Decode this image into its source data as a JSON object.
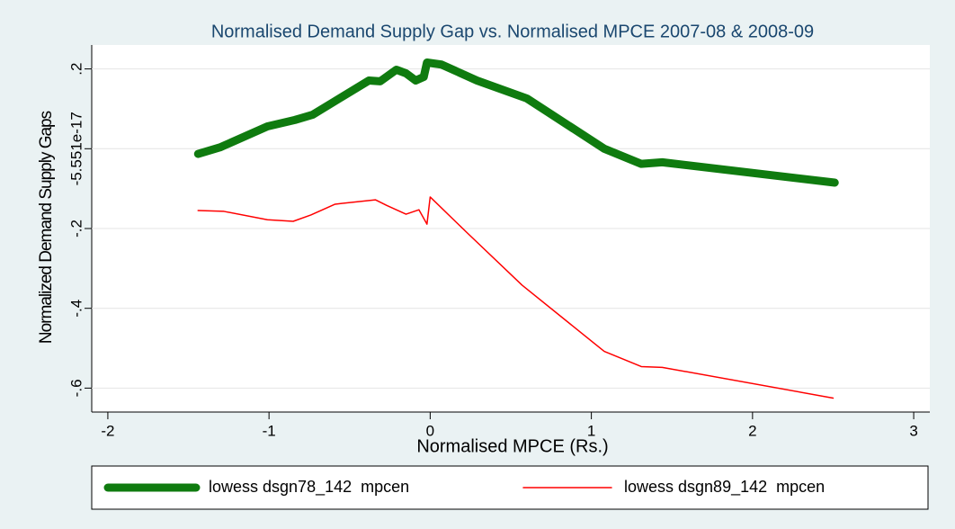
{
  "chart_data": {
    "type": "line",
    "title": "Normalised Demand Supply Gap vs. Normalised MPCE 2007-08 & 2008-09",
    "x_label": "Normalised MPCE (Rs.)",
    "y_label": "Normalized Demand Supply Gaps",
    "xlim": [
      -2.1,
      3.1
    ],
    "ylim": [
      -0.66,
      0.26
    ],
    "xticks": [
      -2,
      -1,
      0,
      1,
      2,
      3
    ],
    "yticks": [
      {
        "value": 0.2,
        "label": ".2"
      },
      {
        "value": -5.551e-17,
        "label": "-5.551e-17"
      },
      {
        "value": -0.2,
        "label": "-.2"
      },
      {
        "value": -0.4,
        "label": "-.4"
      },
      {
        "value": -0.6,
        "label": "-.6"
      }
    ],
    "grid": true,
    "legend": "bottom",
    "series": [
      {
        "name": "lowess dsgn78_142  mpcen",
        "color": "#0f7b0f",
        "x": [
          -1.44,
          -1.3,
          -1.01,
          -0.84,
          -0.73,
          -0.6,
          -0.38,
          -0.31,
          -0.21,
          -0.15,
          -0.09,
          -0.04,
          -0.02,
          0.07,
          0.29,
          0.6,
          1.08,
          1.31,
          1.44,
          2.51
        ],
        "values": [
          -0.013,
          0.004,
          0.056,
          0.072,
          0.085,
          0.117,
          0.171,
          0.169,
          0.198,
          0.189,
          0.171,
          0.18,
          0.216,
          0.211,
          0.171,
          0.126,
          0.0,
          -0.038,
          -0.034,
          -0.085
        ]
      },
      {
        "name": "lowess dsgn89_142  mpcen",
        "color": "#ff0000",
        "x": [
          -1.44,
          -1.28,
          -1.01,
          -0.85,
          -0.74,
          -0.59,
          -0.34,
          -0.27,
          -0.15,
          -0.07,
          -0.02,
          0.0,
          0.23,
          0.57,
          1.08,
          1.31,
          1.44,
          2.5
        ],
        "values": [
          -0.155,
          -0.157,
          -0.178,
          -0.182,
          -0.166,
          -0.139,
          -0.128,
          -0.142,
          -0.164,
          -0.153,
          -0.189,
          -0.121,
          -0.211,
          -0.342,
          -0.508,
          -0.546,
          -0.548,
          -0.625
        ]
      }
    ]
  }
}
